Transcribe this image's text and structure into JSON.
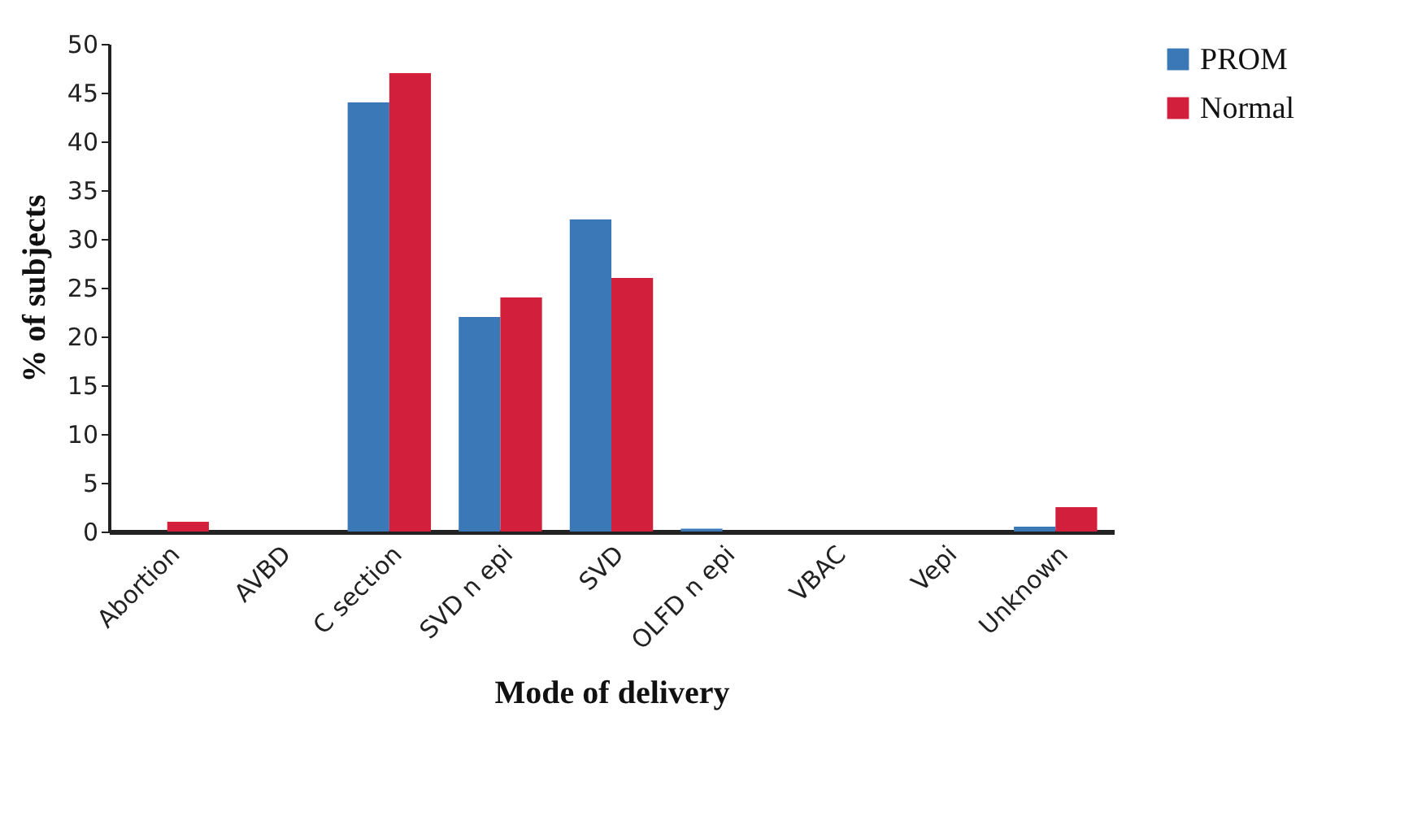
{
  "chart_data": {
    "type": "bar",
    "xlabel": "Mode of delivery",
    "ylabel": "% of subjects",
    "categories": [
      "Abortion",
      "AVBD",
      "C section",
      "SVD n epi",
      "SVD",
      "OLFD n epi",
      "VBAC",
      "Vepi",
      "Unknown"
    ],
    "series": [
      {
        "name": "PROM",
        "color": "#3b78b8",
        "values": [
          0,
          0,
          44,
          22,
          32,
          0.3,
          0,
          0,
          0.5
        ]
      },
      {
        "name": "Normal",
        "color": "#d21f3c",
        "values": [
          1,
          0,
          47,
          24,
          26,
          0,
          0,
          0,
          2.5
        ]
      }
    ],
    "ylim": [
      0,
      50
    ],
    "yticks": [
      0,
      5,
      10,
      15,
      20,
      25,
      30,
      35,
      40,
      45,
      50
    ],
    "grid": false,
    "legend": "right"
  }
}
